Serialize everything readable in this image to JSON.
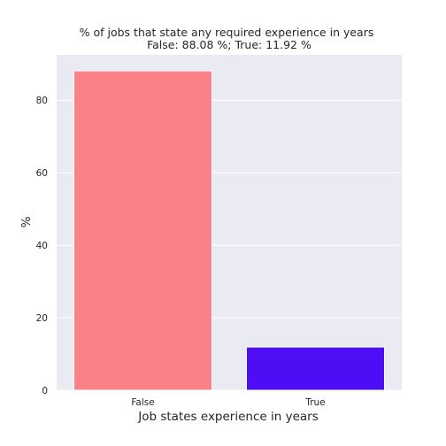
{
  "chart_data": {
    "type": "bar",
    "title": "% of jobs that state any required experience in years",
    "subtitle": "False: 88.08 %; True: 11.92 %",
    "xlabel": "Job states experience in years",
    "ylabel": "%",
    "categories": [
      "False",
      "True"
    ],
    "values": [
      88.08,
      11.92
    ],
    "colors": [
      "#fa8188",
      "#4d0df5"
    ],
    "ylim": [
      0,
      92.5
    ],
    "yticks": [
      0,
      20,
      40,
      60,
      80
    ],
    "grid": true,
    "background": "#eaeaf2",
    "grid_color": "#ffffff"
  }
}
